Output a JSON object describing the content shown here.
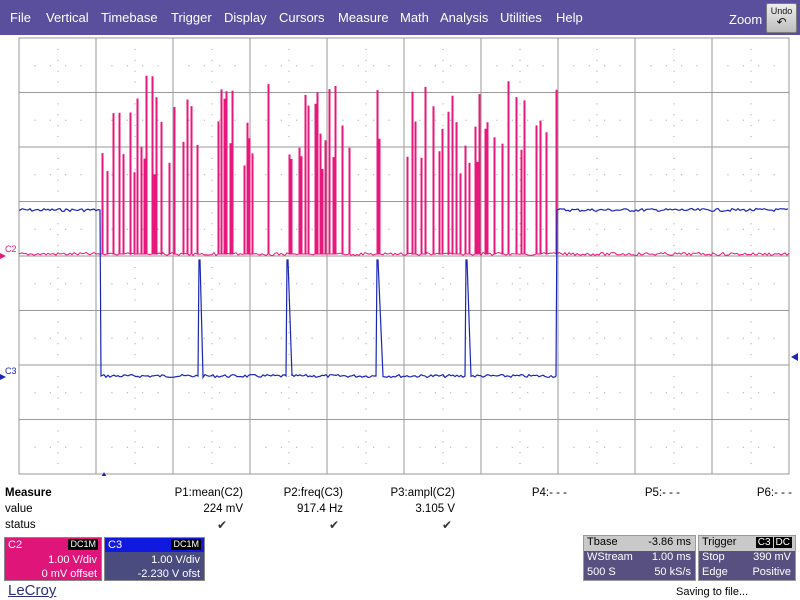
{
  "menu": {
    "items": [
      "File",
      "Vertical",
      "Timebase",
      "Trigger",
      "Display",
      "Cursors",
      "Measure",
      "Math",
      "Analysis",
      "Utilities",
      "Help"
    ],
    "zoom_label": "Zoom",
    "undo_label": "Undo"
  },
  "display": {
    "c2_marker": "C2",
    "c3_marker": "C3",
    "colors": {
      "c2": "#e8177b",
      "c3": "#1a26b8",
      "menubar": "#5a4f9c",
      "grid": "#9a9a9a"
    }
  },
  "measure": {
    "title": "Measure",
    "row_value": "value",
    "row_status": "status",
    "params": [
      {
        "label": "P1:mean(C2)",
        "value": "224 mV",
        "ok": true
      },
      {
        "label": "P2:freq(C3)",
        "value": "917.4 Hz",
        "ok": true
      },
      {
        "label": "P3:ampl(C2)",
        "value": "3.105 V",
        "ok": true
      },
      {
        "label": "P4:- - -",
        "value": "",
        "ok": false
      },
      {
        "label": "P5:- - -",
        "value": "",
        "ok": false
      },
      {
        "label": "P6:- - -",
        "value": "",
        "ok": false
      }
    ],
    "check_glyph": "✔"
  },
  "channels": {
    "c2": {
      "name": "C2",
      "coupling": "DC1M",
      "vdiv": "1.00 V/div",
      "offset": "0 mV offset"
    },
    "c3": {
      "name": "C3",
      "coupling": "DC1M",
      "vdiv": "1.00 V/div",
      "offset": "-2.230 V ofst"
    }
  },
  "timebase": {
    "label": "Tbase",
    "delay": "-3.86 ms",
    "mode": "WStream",
    "tdiv": "1.00 ms",
    "samples": "500 S",
    "rate": "50 kS/s"
  },
  "trigger": {
    "label": "Trigger",
    "source": "C3",
    "coupling": "DC",
    "state": "Stop",
    "level": "390 mV",
    "type": "Edge",
    "slope": "Positive"
  },
  "brand": "LeCroy",
  "status_message": "Saving to file..."
}
